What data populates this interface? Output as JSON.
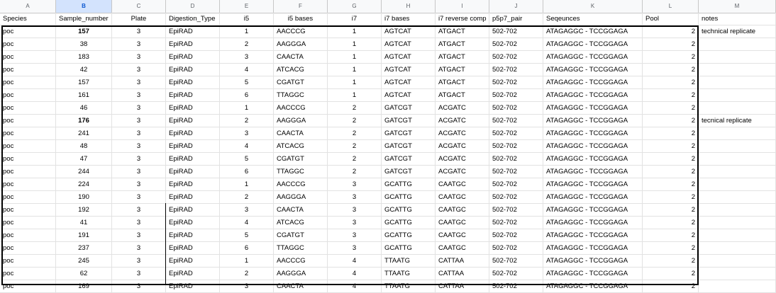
{
  "column_letters": [
    "A",
    "B",
    "C",
    "D",
    "E",
    "F",
    "G",
    "H",
    "I",
    "J",
    "K",
    "L",
    "M"
  ],
  "selected_column": "B",
  "headers": [
    "Species",
    "Sample_number",
    "Plate",
    "Digestion_Type",
    "i5",
    "i5 bases",
    "i7",
    "i7 bases",
    "i7 reverse comp",
    "p5p7_pair",
    "Seqeunces",
    "Pool",
    "notes"
  ],
  "rows": [
    [
      "poc",
      "157",
      "3",
      "EpiRAD",
      "1",
      "AACCCG",
      "1",
      "AGTCAT",
      "ATGACT",
      "502-702",
      "ATAGAGGC - TCCGGAGA",
      "2",
      "technical replicate"
    ],
    [
      "poc",
      "38",
      "3",
      "EpiRAD",
      "2",
      "AAGGGA",
      "1",
      "AGTCAT",
      "ATGACT",
      "502-702",
      "ATAGAGGC - TCCGGAGA",
      "2",
      ""
    ],
    [
      "poc",
      "183",
      "3",
      "EpiRAD",
      "3",
      "CAACTA",
      "1",
      "AGTCAT",
      "ATGACT",
      "502-702",
      "ATAGAGGC - TCCGGAGA",
      "2",
      ""
    ],
    [
      "poc",
      "42",
      "3",
      "EpiRAD",
      "4",
      "ATCACG",
      "1",
      "AGTCAT",
      "ATGACT",
      "502-702",
      "ATAGAGGC - TCCGGAGA",
      "2",
      ""
    ],
    [
      "poc",
      "157",
      "3",
      "EpiRAD",
      "5",
      "CGATGT",
      "1",
      "AGTCAT",
      "ATGACT",
      "502-702",
      "ATAGAGGC - TCCGGAGA",
      "2",
      ""
    ],
    [
      "poc",
      "161",
      "3",
      "EpiRAD",
      "6",
      "TTAGGC",
      "1",
      "AGTCAT",
      "ATGACT",
      "502-702",
      "ATAGAGGC - TCCGGAGA",
      "2",
      ""
    ],
    [
      "poc",
      "46",
      "3",
      "EpiRAD",
      "1",
      "AACCCG",
      "2",
      "GATCGT",
      "ACGATC",
      "502-702",
      "ATAGAGGC - TCCGGAGA",
      "2",
      ""
    ],
    [
      "poc",
      "176",
      "3",
      "EpiRAD",
      "2",
      "AAGGGA",
      "2",
      "GATCGT",
      "ACGATC",
      "502-702",
      "ATAGAGGC - TCCGGAGA",
      "2",
      "tecnical replicate"
    ],
    [
      "poc",
      "241",
      "3",
      "EpiRAD",
      "3",
      "CAACTA",
      "2",
      "GATCGT",
      "ACGATC",
      "502-702",
      "ATAGAGGC - TCCGGAGA",
      "2",
      ""
    ],
    [
      "poc",
      "48",
      "3",
      "EpiRAD",
      "4",
      "ATCACG",
      "2",
      "GATCGT",
      "ACGATC",
      "502-702",
      "ATAGAGGC - TCCGGAGA",
      "2",
      ""
    ],
    [
      "poc",
      "47",
      "3",
      "EpiRAD",
      "5",
      "CGATGT",
      "2",
      "GATCGT",
      "ACGATC",
      "502-702",
      "ATAGAGGC - TCCGGAGA",
      "2",
      ""
    ],
    [
      "poc",
      "244",
      "3",
      "EpiRAD",
      "6",
      "TTAGGC",
      "2",
      "GATCGT",
      "ACGATC",
      "502-702",
      "ATAGAGGC - TCCGGAGA",
      "2",
      ""
    ],
    [
      "poc",
      "224",
      "3",
      "EpiRAD",
      "1",
      "AACCCG",
      "3",
      "GCATTG",
      "CAATGC",
      "502-702",
      "ATAGAGGC - TCCGGAGA",
      "2",
      ""
    ],
    [
      "poc",
      "190",
      "3",
      "EpiRAD",
      "2",
      "AAGGGA",
      "3",
      "GCATTG",
      "CAATGC",
      "502-702",
      "ATAGAGGC - TCCGGAGA",
      "2",
      ""
    ],
    [
      "poc",
      "192",
      "3",
      "EpiRAD",
      "3",
      "CAACTA",
      "3",
      "GCATTG",
      "CAATGC",
      "502-702",
      "ATAGAGGC - TCCGGAGA",
      "2",
      ""
    ],
    [
      "poc",
      "41",
      "3",
      "EpiRAD",
      "4",
      "ATCACG",
      "3",
      "GCATTG",
      "CAATGC",
      "502-702",
      "ATAGAGGC - TCCGGAGA",
      "2",
      ""
    ],
    [
      "poc",
      "191",
      "3",
      "EpiRAD",
      "5",
      "CGATGT",
      "3",
      "GCATTG",
      "CAATGC",
      "502-702",
      "ATAGAGGC - TCCGGAGA",
      "2",
      ""
    ],
    [
      "poc",
      "237",
      "3",
      "EpiRAD",
      "6",
      "TTAGGC",
      "3",
      "GCATTG",
      "CAATGC",
      "502-702",
      "ATAGAGGC - TCCGGAGA",
      "2",
      ""
    ],
    [
      "poc",
      "245",
      "3",
      "EpiRAD",
      "1",
      "AACCCG",
      "4",
      "TTAATG",
      "CATTAA",
      "502-702",
      "ATAGAGGC - TCCGGAGA",
      "2",
      ""
    ],
    [
      "poc",
      "62",
      "3",
      "EpiRAD",
      "2",
      "AAGGGA",
      "4",
      "TTAATG",
      "CATTAA",
      "502-702",
      "ATAGAGGC - TCCGGAGA",
      "2",
      ""
    ],
    [
      "poc",
      "169",
      "3",
      "EpiRAD",
      "3",
      "CAACTA",
      "4",
      "TTAATG",
      "CATTAA",
      "502-702",
      "ATAGAGGC - TCCGGAGA",
      "2",
      ""
    ]
  ],
  "bold_cells": [
    [
      0,
      1
    ],
    [
      7,
      1
    ]
  ],
  "colors": {
    "selected_header_bg": "#d3e3fd",
    "selected_header_text": "#0b57d0",
    "border": "#000000",
    "gridline": "#e2e2e2"
  }
}
